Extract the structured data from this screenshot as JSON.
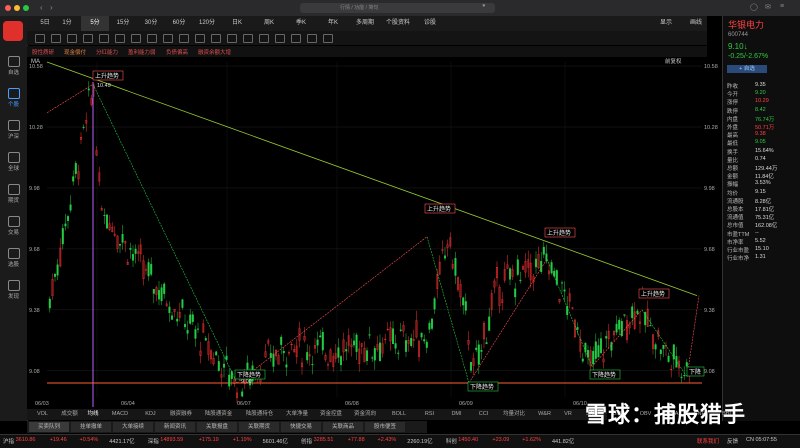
{
  "window": {
    "search_placeholder": "行情 / 功能 / 简句"
  },
  "toolbar": {
    "items": [
      "5日",
      "1分",
      "5分",
      "15分",
      "30分",
      "60分",
      "120分",
      "日K",
      "周K",
      "季K",
      "年K",
      "多周期",
      "个股资料",
      "诊股"
    ],
    "right": [
      "显示",
      "画线"
    ]
  },
  "sidebar": {
    "items": [
      "自选",
      "个股",
      "沪深",
      "全球",
      "期货",
      "交易",
      "选股",
      "发现"
    ]
  },
  "indicators": {
    "items": [
      {
        "label": "股性质研",
        "color": "#e05050"
      },
      {
        "label": "现金偿付",
        "color": "#e08040"
      },
      {
        "label": "分红能力",
        "color": "#e05050"
      },
      {
        "label": "盈利能力弱",
        "color": "#e05050"
      },
      {
        "label": "负债偏高",
        "color": "#e05050"
      },
      {
        "label": "融资余额大增",
        "color": "#e05050"
      }
    ]
  },
  "chart": {
    "ma_label": "MA",
    "fq_label": "前复权",
    "y_left": [
      "10.58",
      "10.28",
      "9.98",
      "9.68",
      "9.38",
      "9.08"
    ],
    "y_right": [
      "10.58",
      "10.28",
      "9.98",
      "9.68",
      "9.38",
      "9.08"
    ],
    "x_labels": [
      "06/03",
      "06/04",
      "06/07",
      "06/08",
      "06/09",
      "06/10"
    ],
    "high_label": "10.49",
    "low_label": "9.00",
    "trend_up": "上升趋势",
    "trend_down": "下降趋势",
    "trend_down_short": "下降"
  },
  "chart_data": {
    "type": "candlestick",
    "ylim": [
      9.0,
      10.6
    ],
    "x": [
      "06/03",
      "06/04",
      "06/07",
      "06/08",
      "06/09",
      "06/10"
    ]
  },
  "bottom_tabs": [
    "VOL",
    "成交额",
    "均线",
    "MACD",
    "KDJ",
    "融资融券",
    "陆股通资金",
    "陆股通持仓",
    "大单净量",
    "资金控盘",
    "资金流向",
    "BOLL",
    "RSI",
    "DMI",
    "CCI",
    "均量对比",
    "W&R",
    "VR",
    "SAR",
    "DMA",
    "OBV",
    "EMA",
    "ENE",
    "BBI"
  ],
  "news_tabs": [
    "买卖队列",
    "挂单撤单",
    "大单接续",
    "新闻资讯",
    "关联报盘",
    "关联期货",
    "快捷交易",
    "关联商品",
    "股市便签"
  ],
  "stock": {
    "name": "华银电力",
    "code": "600744",
    "price": "9.10",
    "arrow": "↓",
    "change": "-0.25/-2.67%",
    "follow": "+ 自选",
    "fields": [
      {
        "k": "昨收",
        "v": "9.35",
        "c": "#ddd"
      },
      {
        "k": "今开",
        "v": "9.20",
        "c": "#2ecc40"
      },
      {
        "k": "涨停",
        "v": "10.29",
        "c": "#ff4040"
      },
      {
        "k": "跌停",
        "v": "8.42",
        "c": "#2ecc40"
      },
      {
        "k": "内盘",
        "v": "76.74万",
        "c": "#2ecc40"
      },
      {
        "k": "外盘",
        "v": "50.71万",
        "c": "#ff4040"
      },
      {
        "k": "最高",
        "v": "9.38",
        "c": "#ff4040"
      },
      {
        "k": "最低",
        "v": "9.05",
        "c": "#2ecc40"
      },
      {
        "k": "换手",
        "v": "15.64%",
        "c": "#ddd"
      },
      {
        "k": "量比",
        "v": "0.74",
        "c": "#ddd"
      },
      {
        "k": "总额",
        "v": "129.44万",
        "c": "#ddd"
      },
      {
        "k": "金额",
        "v": "11.84亿",
        "c": "#ddd"
      },
      {
        "k": "振幅",
        "v": "3.53%",
        "c": "#ddd"
      },
      {
        "k": "均价",
        "v": "9.15",
        "c": "#ddd"
      },
      {
        "k": "流通股",
        "v": "8.28亿",
        "c": "#ddd"
      },
      {
        "k": "总股本",
        "v": "17.81亿",
        "c": "#ddd"
      },
      {
        "k": "流通值",
        "v": "75.31亿",
        "c": "#ddd"
      },
      {
        "k": "总市值",
        "v": "162.08亿",
        "c": "#ddd"
      },
      {
        "k": "市盈TTM",
        "v": "--",
        "c": "#ddd"
      },
      {
        "k": "市净率",
        "v": "5.52",
        "c": "#ddd"
      },
      {
        "k": "行业市盈",
        "v": "15.10",
        "c": "#ddd"
      },
      {
        "k": "行业市净",
        "v": "1.31",
        "c": "#ddd"
      }
    ]
  },
  "watermark": "雪球：捕股猎手",
  "status": {
    "items": [
      {
        "t": "沪指",
        "c": "#ccc"
      },
      {
        "t": "3610.86",
        "c": "#ff4040"
      },
      {
        "t": "+19.46",
        "c": "#ff4040"
      },
      {
        "t": "+0.54%",
        "c": "#ff4040"
      },
      {
        "t": "4421.17亿",
        "c": "#ccc"
      },
      {
        "t": "深指",
        "c": "#ccc"
      },
      {
        "t": "14893.59",
        "c": "#ff4040"
      },
      {
        "t": "+175.19",
        "c": "#ff4040"
      },
      {
        "t": "+1.19%",
        "c": "#ff4040"
      },
      {
        "t": "5601.46亿",
        "c": "#ccc"
      },
      {
        "t": "创指",
        "c": "#ccc"
      },
      {
        "t": "3285.51",
        "c": "#ff4040"
      },
      {
        "t": "+77.88",
        "c": "#ff4040"
      },
      {
        "t": "+2.43%",
        "c": "#ff4040"
      },
      {
        "t": "2260.19亿",
        "c": "#ccc"
      },
      {
        "t": "科创",
        "c": "#ccc"
      },
      {
        "t": "1450.40",
        "c": "#ff4040"
      },
      {
        "t": "+23.09",
        "c": "#ff4040"
      },
      {
        "t": "+1.62%",
        "c": "#ff4040"
      },
      {
        "t": "441.82亿",
        "c": "#ccc"
      }
    ],
    "contact": "联系我们",
    "feedback": "反馈",
    "clock": "CN 05:07:55"
  }
}
